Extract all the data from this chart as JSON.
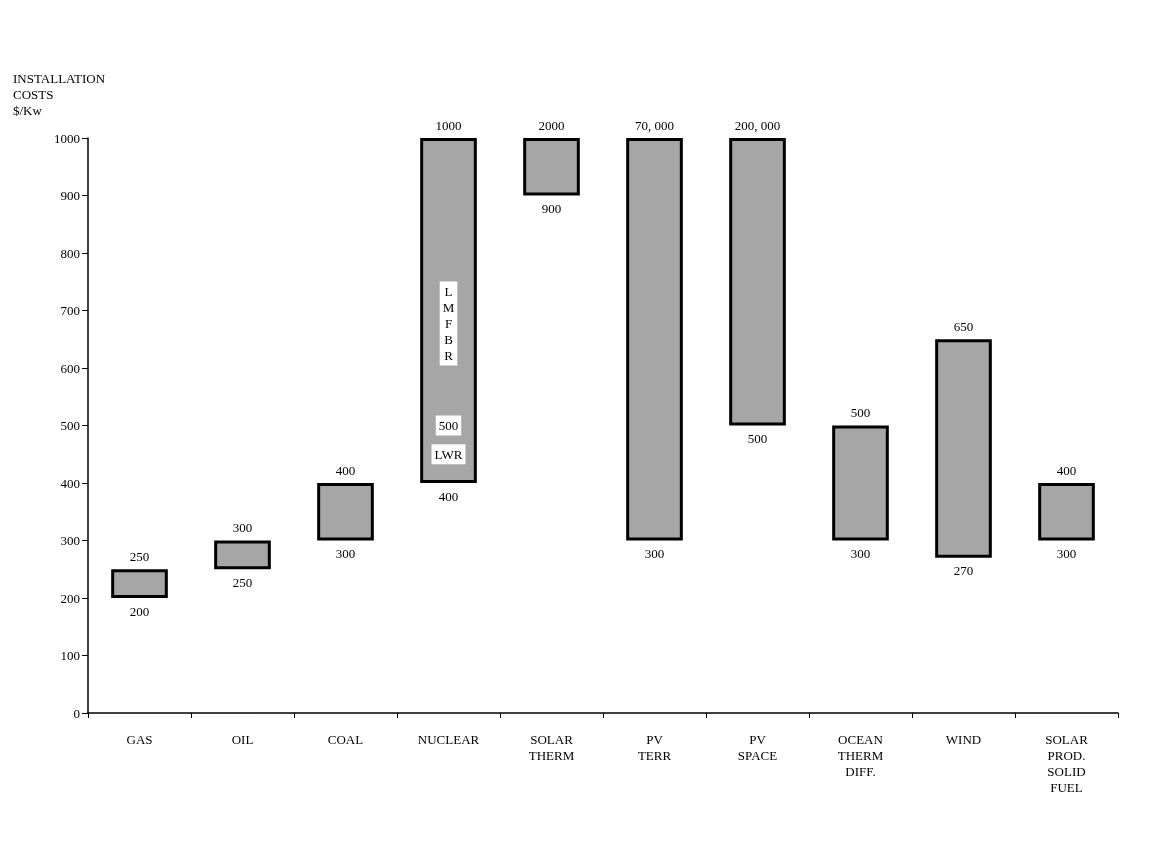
{
  "chart_data": {
    "type": "bar",
    "ylabel": "INSTALLATION\nCOSTS\n$/Kw",
    "categories": [
      "GAS",
      "OIL",
      "COAL",
      "NUCLEAR",
      "SOLAR\nTHERM",
      "PV\nTERR",
      "PV\nSPACE",
      "OCEAN\nTHERM\nDIFF.",
      "WIND",
      "SOLAR\nPROD.\nSOLID\nFUEL"
    ],
    "base": [
      200,
      250,
      300,
      400,
      900,
      300,
      500,
      300,
      270,
      300
    ],
    "color": "#a6a6a6",
    "values": [
      50,
      50,
      100,
      600,
      100,
      700,
      500,
      200,
      380,
      100
    ],
    "ylim": [
      0,
      1000
    ],
    "yticks": [
      0,
      100,
      200,
      300,
      400,
      500,
      600,
      700,
      800,
      900,
      1000
    ],
    "grid": false,
    "annotations": [
      {
        "text": "250",
        "x": "GAS",
        "y": 250
      },
      {
        "text": "200",
        "x": "GAS",
        "y": 200
      },
      {
        "text": "300",
        "x": "OIL",
        "y": 300
      },
      {
        "text": "250",
        "x": "OIL",
        "y": 250
      },
      {
        "text": "400",
        "x": "COAL",
        "y": 400
      },
      {
        "text": "300",
        "x": "COAL",
        "y": 300
      },
      {
        "text": "1000",
        "x": "NUCLEAR",
        "y": 1000
      },
      {
        "text": "400",
        "x": "NUCLEAR",
        "y": 400
      },
      {
        "text": "500",
        "x": "NUCLEAR",
        "y": 500
      },
      "L\nM\nF\nB\nR",
      {
        "text": "LWR",
        "x": "NUCLEAR",
        "y": 450
      },
      {
        "text": "2000",
        "x": "SOLAR\nTHERM",
        "y": 1000
      },
      {
        "text": "900",
        "x": "SOLAR\nTHERM",
        "y": 900
      },
      {
        "text": "70, 000",
        "x": "PV\nTERR",
        "y": 1000
      },
      {
        "text": "300",
        "x": "PV\nTERR",
        "y": 300
      },
      {
        "text": "200, 000",
        "x": "PV\nSPACE",
        "y": 1000
      },
      {
        "text": "500",
        "x": "PV\nSPACE",
        "y": 500
      },
      {
        "text": "500",
        "x": "OCEAN\nTHERM\nDIFF.",
        "y": 500
      },
      {
        "text": "300",
        "x": "OCEAN\nTHERM\nDIFF.",
        "y": 300
      },
      {
        "text": "650",
        "x": "WIND",
        "y": 650
      },
      {
        "text": "270",
        "x": "WIND",
        "y": 270
      },
      {
        "text": "400",
        "x": "SOLAR\nPROD.\nSOLID\nFUEL",
        "y": 400
      },
      {
        "text": "300",
        "x": "SOLAR\nPROD.\nSOLID\nFUEL",
        "y": 300
      }
    ]
  }
}
